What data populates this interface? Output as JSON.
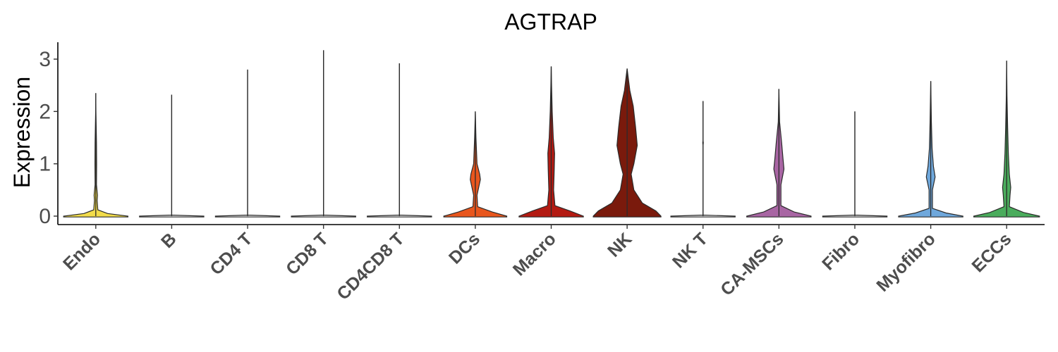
{
  "chart_data": {
    "type": "violin",
    "title": "AGTRAP",
    "xlabel": "",
    "ylabel": "Expression",
    "ylim": [
      -0.15,
      3.3
    ],
    "yticks": [
      "0",
      "1",
      "2",
      "3"
    ],
    "grid": false,
    "legend": "none",
    "categories": [
      "Endo",
      "B",
      "CD4 T",
      "CD8 T",
      "CD4CD8 T",
      "DCs",
      "Macro",
      "NK",
      "NK T",
      "CA-MSCs",
      "Fibro",
      "Myofibro",
      "ECCs"
    ],
    "colors": [
      "#f2dc4b",
      "#e8e8e8",
      "#e8e8e8",
      "#e8e8e8",
      "#e8e8e8",
      "#e8561d",
      "#b31a12",
      "#7a1a0c",
      "#e8e8e8",
      "#a865a3",
      "#e8e8e8",
      "#6fa8dc",
      "#4aac5c"
    ],
    "max_values": [
      2.35,
      2.32,
      2.8,
      3.17,
      2.92,
      2.0,
      2.86,
      2.82,
      2.2,
      2.43,
      2.0,
      2.58,
      2.97
    ],
    "density_profiles": [
      [
        [
          0.0,
          1.0
        ],
        [
          0.05,
          0.35
        ],
        [
          0.12,
          0.06
        ],
        [
          0.3,
          0.04
        ],
        [
          0.4,
          0.05
        ],
        [
          0.6,
          0.02
        ],
        [
          1.0,
          0.025
        ],
        [
          1.4,
          0.02
        ],
        [
          2.0,
          0.005
        ],
        [
          2.35,
          0.0
        ]
      ],
      [
        [
          0.0,
          1.0
        ],
        [
          0.02,
          0.0
        ],
        [
          2.32,
          0.0
        ]
      ],
      [
        [
          0.0,
          1.0
        ],
        [
          0.02,
          0.0
        ],
        [
          2.8,
          0.0
        ]
      ],
      [
        [
          0.0,
          1.0
        ],
        [
          0.02,
          0.0
        ],
        [
          3.17,
          0.0
        ]
      ],
      [
        [
          0.0,
          1.0
        ],
        [
          0.02,
          0.0
        ],
        [
          2.92,
          0.0
        ]
      ],
      [
        [
          0.0,
          1.0
        ],
        [
          0.08,
          0.5
        ],
        [
          0.18,
          0.07
        ],
        [
          0.4,
          0.05
        ],
        [
          0.7,
          0.15
        ],
        [
          0.8,
          0.13
        ],
        [
          1.0,
          0.05
        ],
        [
          1.5,
          0.02
        ],
        [
          2.0,
          0.0
        ]
      ],
      [
        [
          0.0,
          1.0
        ],
        [
          0.1,
          0.55
        ],
        [
          0.2,
          0.11
        ],
        [
          0.5,
          0.07
        ],
        [
          0.9,
          0.09
        ],
        [
          1.2,
          0.1
        ],
        [
          1.5,
          0.06
        ],
        [
          2.0,
          0.03
        ],
        [
          2.5,
          0.01
        ],
        [
          2.86,
          0.0
        ]
      ],
      [
        [
          0.0,
          1.0
        ],
        [
          0.1,
          0.85
        ],
        [
          0.25,
          0.45
        ],
        [
          0.5,
          0.2
        ],
        [
          0.8,
          0.12
        ],
        [
          1.0,
          0.2
        ],
        [
          1.35,
          0.3
        ],
        [
          1.7,
          0.25
        ],
        [
          2.1,
          0.18
        ],
        [
          2.4,
          0.08
        ],
        [
          2.82,
          0.0
        ]
      ],
      [
        [
          0.0,
          1.0
        ],
        [
          0.02,
          0.0
        ],
        [
          1.35,
          0.0
        ],
        [
          1.4,
          0.01
        ],
        [
          1.45,
          0.0
        ],
        [
          2.2,
          0.0
        ]
      ],
      [
        [
          0.0,
          1.0
        ],
        [
          0.08,
          0.45
        ],
        [
          0.2,
          0.06
        ],
        [
          0.6,
          0.06
        ],
        [
          0.9,
          0.15
        ],
        [
          1.1,
          0.12
        ],
        [
          1.4,
          0.08
        ],
        [
          1.8,
          0.02
        ],
        [
          2.43,
          0.0
        ]
      ],
      [
        [
          0.0,
          1.0
        ],
        [
          0.02,
          0.0
        ],
        [
          2.0,
          0.0
        ]
      ],
      [
        [
          0.0,
          1.0
        ],
        [
          0.06,
          0.45
        ],
        [
          0.15,
          0.05
        ],
        [
          0.5,
          0.05
        ],
        [
          0.75,
          0.13
        ],
        [
          0.95,
          0.08
        ],
        [
          1.3,
          0.04
        ],
        [
          1.8,
          0.02
        ],
        [
          2.58,
          0.0
        ]
      ],
      [
        [
          0.0,
          1.0
        ],
        [
          0.07,
          0.5
        ],
        [
          0.18,
          0.08
        ],
        [
          0.4,
          0.1
        ],
        [
          0.55,
          0.12
        ],
        [
          0.8,
          0.08
        ],
        [
          1.2,
          0.05
        ],
        [
          1.7,
          0.03
        ],
        [
          2.3,
          0.01
        ],
        [
          2.97,
          0.0
        ]
      ]
    ],
    "zero_width_fraction": [
      0.95,
      0.95,
      0.95,
      0.95,
      0.95,
      0.93,
      0.95,
      1.0,
      0.95,
      0.95,
      0.95,
      0.95,
      0.97
    ]
  }
}
